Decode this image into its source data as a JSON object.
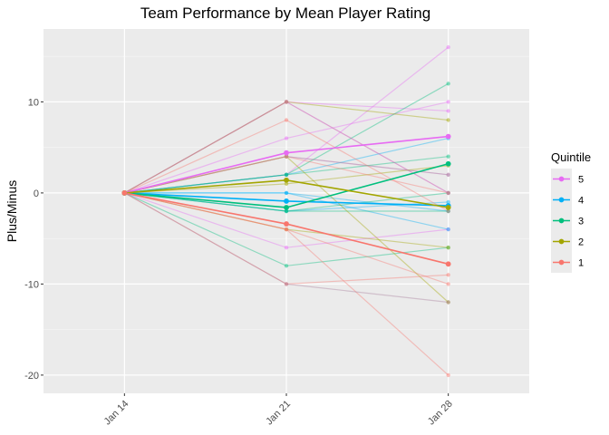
{
  "chart_data": {
    "type": "line",
    "title": "Team Performance by Mean Player Rating",
    "xlabel": "",
    "ylabel": "Plus/Minus",
    "categories": [
      "Jan 14",
      "Jan 21",
      "Jan 28"
    ],
    "ylim": [
      -22,
      18
    ],
    "yticks": [
      -20,
      -10,
      0,
      10
    ],
    "grid": true,
    "legend": {
      "title": "Quintile",
      "position": "right",
      "entries": [
        {
          "label": "5",
          "color": "#E76BF3"
        },
        {
          "label": "4",
          "color": "#00B0F6"
        },
        {
          "label": "3",
          "color": "#00BF7D"
        },
        {
          "label": "2",
          "color": "#A3A500"
        },
        {
          "label": "1",
          "color": "#F8766D"
        }
      ]
    },
    "mean_series": [
      {
        "quintile": "5",
        "values": [
          0,
          4.4,
          6.2
        ]
      },
      {
        "quintile": "4",
        "values": [
          0,
          -0.9,
          -1.4
        ]
      },
      {
        "quintile": "3",
        "values": [
          0,
          -1.6,
          3.2
        ]
      },
      {
        "quintile": "2",
        "values": [
          0,
          1.4,
          -1.6
        ]
      },
      {
        "quintile": "1",
        "values": [
          0,
          -3.4,
          -7.8
        ]
      }
    ],
    "team_series": [
      {
        "quintile": "5",
        "values": [
          0,
          6,
          10
        ]
      },
      {
        "quintile": "5",
        "values": [
          0,
          10,
          9
        ]
      },
      {
        "quintile": "5",
        "values": [
          0,
          -6,
          -4
        ]
      },
      {
        "quintile": "5",
        "values": [
          0,
          2,
          16
        ]
      },
      {
        "quintile": "5",
        "values": [
          0,
          10,
          0
        ]
      },
      {
        "quintile": "5",
        "values": [
          0,
          4,
          2
        ]
      },
      {
        "quintile": "4",
        "values": [
          0,
          0,
          -4
        ]
      },
      {
        "quintile": "4",
        "values": [
          0,
          2,
          6
        ]
      },
      {
        "quintile": "4",
        "values": [
          0,
          -2,
          -1
        ]
      },
      {
        "quintile": "4",
        "values": [
          0,
          0,
          -2
        ]
      },
      {
        "quintile": "3",
        "values": [
          0,
          2,
          12
        ]
      },
      {
        "quintile": "3",
        "values": [
          0,
          -8,
          -6
        ]
      },
      {
        "quintile": "3",
        "values": [
          0,
          -2,
          0
        ]
      },
      {
        "quintile": "3",
        "values": [
          0,
          2,
          4
        ]
      },
      {
        "quintile": "3",
        "values": [
          0,
          -2,
          -2
        ]
      },
      {
        "quintile": "2",
        "values": [
          0,
          10,
          8
        ]
      },
      {
        "quintile": "2",
        "values": [
          0,
          4,
          -12
        ]
      },
      {
        "quintile": "2",
        "values": [
          0,
          -4,
          -6
        ]
      },
      {
        "quintile": "2",
        "values": [
          0,
          1,
          3
        ]
      },
      {
        "quintile": "1",
        "values": [
          0,
          8,
          -2
        ]
      },
      {
        "quintile": "1",
        "values": [
          0,
          -4,
          -20
        ]
      },
      {
        "quintile": "1",
        "values": [
          0,
          -10,
          -9
        ]
      },
      {
        "quintile": "1",
        "values": [
          0,
          4,
          0
        ]
      },
      {
        "quintile": "1",
        "values": [
          0,
          -4,
          -10
        ]
      },
      {
        "quintile": "mixed",
        "values": [
          0,
          10,
          0
        ],
        "color": "#C77CA0"
      },
      {
        "quintile": "mixed",
        "values": [
          0,
          -10,
          -12
        ],
        "color": "#A77C9A"
      },
      {
        "quintile": "mixed",
        "values": [
          0,
          4,
          2
        ],
        "color": "#9E9A8A"
      }
    ]
  }
}
